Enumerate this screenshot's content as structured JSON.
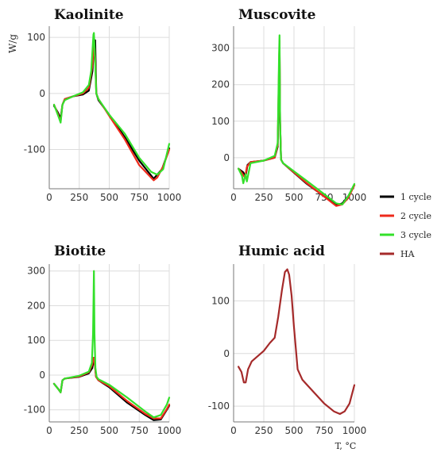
{
  "legend": [
    {
      "label": "1 cycle",
      "color": "#000000"
    },
    {
      "label": "2 cycle",
      "color": "#ee2a1b"
    },
    {
      "label": "3 cycle",
      "color": "#33e02a"
    },
    {
      "label": "HA",
      "color": "#a52a2a"
    }
  ],
  "chart_data": [
    {
      "type": "line",
      "title": "Kaolinite",
      "ylabel": "W/g",
      "xlabel": "",
      "xlim": [
        0,
        1000
      ],
      "ylim": [
        -170,
        120
      ],
      "xticks": [
        0,
        250,
        500,
        750,
        1000
      ],
      "yticks": [
        -100,
        0,
        100
      ],
      "grid": true,
      "series": [
        {
          "name": "1 cycle",
          "color": "#000000",
          "x": [
            40,
            75,
            95,
            110,
            130,
            200,
            280,
            330,
            360,
            375,
            383,
            392,
            410,
            500,
            630,
            750,
            870,
            940,
            990,
            1000
          ],
          "y": [
            -22,
            -35,
            -45,
            -20,
            -10,
            -5,
            -2,
            5,
            40,
            95,
            95,
            0,
            -12,
            -38,
            -78,
            -120,
            -152,
            -135,
            -105,
            -98
          ]
        },
        {
          "name": "2 cycle",
          "color": "#ee2a1b",
          "x": [
            40,
            75,
            95,
            110,
            130,
            200,
            280,
            330,
            360,
            375,
            383,
            392,
            410,
            500,
            630,
            750,
            870,
            900,
            950,
            1000
          ],
          "y": [
            -20,
            -38,
            -50,
            -20,
            -10,
            -5,
            0,
            10,
            50,
            90,
            60,
            0,
            -10,
            -40,
            -82,
            -128,
            -155,
            -150,
            -130,
            -100
          ]
        },
        {
          "name": "3 cycle",
          "color": "#33e02a",
          "x": [
            40,
            75,
            95,
            110,
            130,
            200,
            280,
            330,
            350,
            368,
            372,
            380,
            392,
            410,
            500,
            630,
            750,
            850,
            900,
            950,
            1000
          ],
          "y": [
            -20,
            -40,
            -52,
            -20,
            -12,
            -5,
            2,
            15,
            40,
            105,
            108,
            70,
            0,
            -10,
            -38,
            -72,
            -115,
            -140,
            -145,
            -135,
            -90
          ]
        }
      ]
    },
    {
      "type": "line",
      "title": "Muscovite",
      "ylabel": "",
      "xlabel": "",
      "xlim": [
        0,
        1000
      ],
      "ylim": [
        -85,
        360
      ],
      "xticks": [
        0,
        250,
        500,
        750,
        1000
      ],
      "yticks": [
        0,
        100,
        200,
        300
      ],
      "grid": true,
      "series": [
        {
          "name": "1 cycle",
          "color": "#000000",
          "x": [
            40,
            80,
            100,
            115,
            140,
            250,
            340,
            365,
            376,
            380,
            385,
            393,
            410,
            600,
            850,
            900,
            950,
            1000
          ],
          "y": [
            -30,
            -40,
            -50,
            -20,
            -12,
            -8,
            0,
            30,
            200,
            310,
            100,
            -5,
            -15,
            -70,
            -130,
            -125,
            -105,
            -75
          ]
        },
        {
          "name": "2 cycle",
          "color": "#ee2a1b",
          "x": [
            40,
            75,
            95,
            110,
            140,
            250,
            340,
            365,
            376,
            380,
            385,
            393,
            410,
            600,
            850,
            900,
            950,
            1000
          ],
          "y": [
            -30,
            -45,
            -55,
            -25,
            -12,
            -8,
            0,
            35,
            250,
            320,
            100,
            -5,
            -15,
            -68,
            -132,
            -128,
            -110,
            -75
          ]
        },
        {
          "name": "3 cycle",
          "color": "#33e02a",
          "x": [
            40,
            70,
            80,
            100,
            110,
            125,
            140,
            250,
            340,
            365,
            376,
            380,
            385,
            393,
            410,
            600,
            850,
            900,
            950,
            1000
          ],
          "y": [
            -30,
            -50,
            -70,
            -45,
            -65,
            -40,
            -15,
            -8,
            5,
            40,
            280,
            335,
            100,
            -5,
            -15,
            -62,
            -125,
            -128,
            -105,
            -72
          ]
        }
      ]
    },
    {
      "type": "line",
      "title": "Biotite",
      "ylabel": "",
      "xlabel": "",
      "xlim": [
        0,
        1000
      ],
      "ylim": [
        -135,
        320
      ],
      "xticks": [
        0,
        250,
        500,
        750,
        1000
      ],
      "yticks": [
        -100,
        0,
        100,
        200,
        300
      ],
      "grid": true,
      "series": [
        {
          "name": "1 cycle",
          "color": "#000000",
          "x": [
            40,
            75,
            95,
            110,
            130,
            250,
            330,
            358,
            368,
            375,
            390,
            410,
            500,
            650,
            800,
            870,
            930,
            980,
            1000
          ],
          "y": [
            -25,
            -40,
            -50,
            -15,
            -10,
            -5,
            5,
            20,
            40,
            50,
            -5,
            -15,
            -35,
            -80,
            -115,
            -130,
            -128,
            -100,
            -88
          ]
        },
        {
          "name": "2 cycle",
          "color": "#ee2a1b",
          "x": [
            40,
            75,
            95,
            110,
            130,
            250,
            330,
            358,
            368,
            375,
            390,
            410,
            500,
            650,
            800,
            870,
            930,
            980,
            1000
          ],
          "y": [
            -25,
            -40,
            -50,
            -15,
            -10,
            -4,
            8,
            30,
            50,
            45,
            -5,
            -15,
            -32,
            -75,
            -112,
            -125,
            -125,
            -98,
            -85
          ]
        },
        {
          "name": "3 cycle",
          "color": "#33e02a",
          "x": [
            40,
            75,
            95,
            110,
            130,
            250,
            330,
            355,
            365,
            372,
            377,
            385,
            395,
            410,
            500,
            650,
            800,
            870,
            930,
            980,
            1000
          ],
          "y": [
            -25,
            -40,
            -50,
            -15,
            -10,
            -2,
            10,
            35,
            120,
            300,
            120,
            20,
            -5,
            -12,
            -28,
            -65,
            -105,
            -122,
            -115,
            -85,
            -65
          ]
        }
      ]
    },
    {
      "type": "line",
      "title": "Humic acid",
      "ylabel": "",
      "xlabel": "T, °C",
      "xlim": [
        0,
        1000
      ],
      "ylim": [
        -130,
        170
      ],
      "xticks": [
        0,
        250,
        500,
        750,
        1000
      ],
      "yticks": [
        -100,
        0,
        100
      ],
      "grid": true,
      "series": [
        {
          "name": "HA",
          "color": "#a52a2a",
          "x": [
            40,
            65,
            85,
            100,
            120,
            150,
            200,
            250,
            300,
            340,
            370,
            400,
            425,
            445,
            460,
            480,
            500,
            530,
            570,
            650,
            750,
            830,
            880,
            920,
            960,
            1000
          ],
          "y": [
            -25,
            -35,
            -55,
            -55,
            -30,
            -15,
            -5,
            5,
            20,
            30,
            70,
            120,
            155,
            160,
            150,
            110,
            50,
            -30,
            -50,
            -70,
            -95,
            -110,
            -115,
            -110,
            -95,
            -60
          ]
        }
      ]
    }
  ]
}
